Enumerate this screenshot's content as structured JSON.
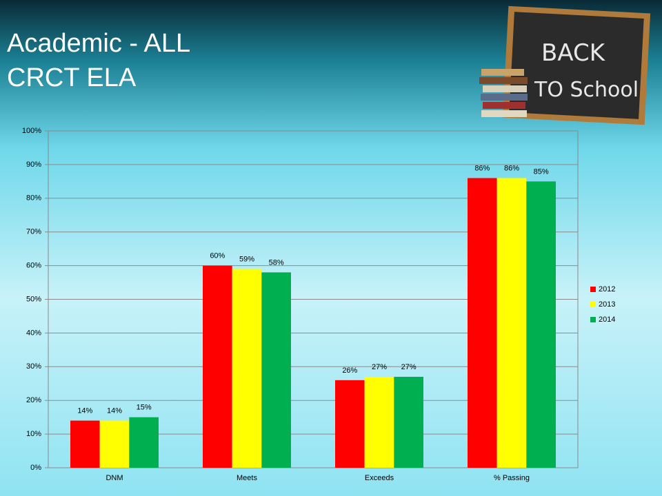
{
  "chart_data": {
    "type": "bar",
    "title": "Academic  - ALL",
    "subtitle": "CRCT ELA",
    "annotations": [
      "BACK",
      "TO School"
    ],
    "categories": [
      "DNM",
      "Meets",
      "Exceeds",
      "% Passing"
    ],
    "series": [
      {
        "name": "2012",
        "color": "#ff0000",
        "values": [
          14,
          60,
          26,
          86
        ],
        "value_labels": [
          "14%",
          "60%",
          "26%",
          "86%"
        ]
      },
      {
        "name": "2013",
        "color": "#ffff00",
        "values": [
          14,
          59,
          27,
          86
        ],
        "value_labels": [
          "14%",
          "59%",
          "27%",
          "86%"
        ]
      },
      {
        "name": "2014",
        "color": "#00b050",
        "values": [
          15,
          58,
          27,
          85
        ],
        "value_labels": [
          "15%",
          "58%",
          "27%",
          "85%"
        ]
      }
    ],
    "ylim": [
      0,
      100
    ],
    "yticks": [
      {
        "value": 0,
        "label": "0%"
      },
      {
        "value": 10,
        "label": "10%"
      },
      {
        "value": 20,
        "label": "20%"
      },
      {
        "value": 30,
        "label": "30%"
      },
      {
        "value": 40,
        "label": "40%"
      },
      {
        "value": 50,
        "label": "50%"
      },
      {
        "value": 60,
        "label": "60%"
      },
      {
        "value": 70,
        "label": "70%"
      },
      {
        "value": 80,
        "label": "80%"
      },
      {
        "value": 90,
        "label": "90%"
      },
      {
        "value": 100,
        "label": "100%"
      }
    ],
    "grid": true,
    "legend": "right"
  }
}
